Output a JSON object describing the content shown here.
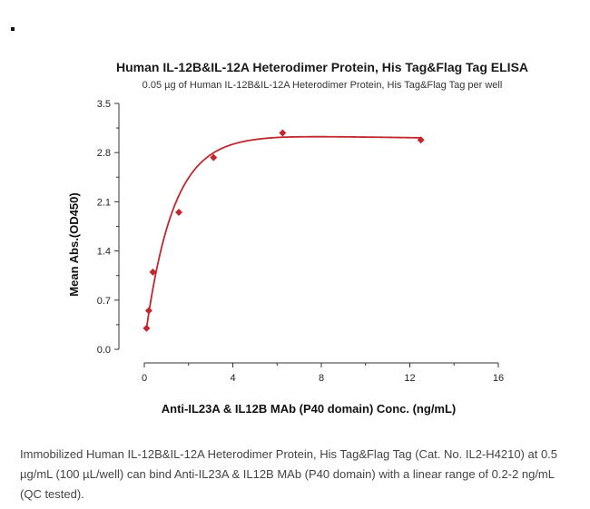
{
  "chart_data": {
    "type": "scatter",
    "title": "Human IL-12B&IL-12A Heterodimer Protein, His Tag&Flag Tag ELISA",
    "subtitle": "0.05 µg of Human IL-12B&IL-12A Heterodimer Protein, His Tag&Flag Tag per well",
    "xlabel": "Anti-IL23A & IL12B MAb (P40 domain) Conc. (ng/mL)",
    "ylabel": "Mean Abs.(OD450)",
    "xlim": [
      0,
      16
    ],
    "ylim": [
      0,
      3.5
    ],
    "x_ticks": [
      "0",
      "4",
      "8",
      "12",
      "16"
    ],
    "y_ticks": [
      "0.0",
      "0.7",
      "1.4",
      "2.1",
      "2.8",
      "3.5"
    ],
    "x_tick_values": [
      0,
      4,
      8,
      12,
      16
    ],
    "y_tick_values": [
      0,
      0.7,
      1.4,
      2.1,
      2.8,
      3.5
    ],
    "series": [
      {
        "x": [
          0.1,
          0.2,
          0.39,
          1.56,
          3.13,
          6.25,
          12.5
        ],
        "y": [
          0.3,
          0.55,
          1.1,
          1.95,
          2.73,
          3.08,
          2.98
        ]
      }
    ],
    "fit_curve": true,
    "grid": false,
    "color": "#c0282d"
  },
  "caption": "Immobilized Human IL-12B&IL-12A Heterodimer Protein, His Tag&Flag Tag (Cat. No. IL2-H4210) at 0.5 µg/mL (100 µL/well) can bind Anti-IL23A & IL12B MAb (P40 domain) with a linear range of 0.2-2 ng/mL (QC tested)."
}
